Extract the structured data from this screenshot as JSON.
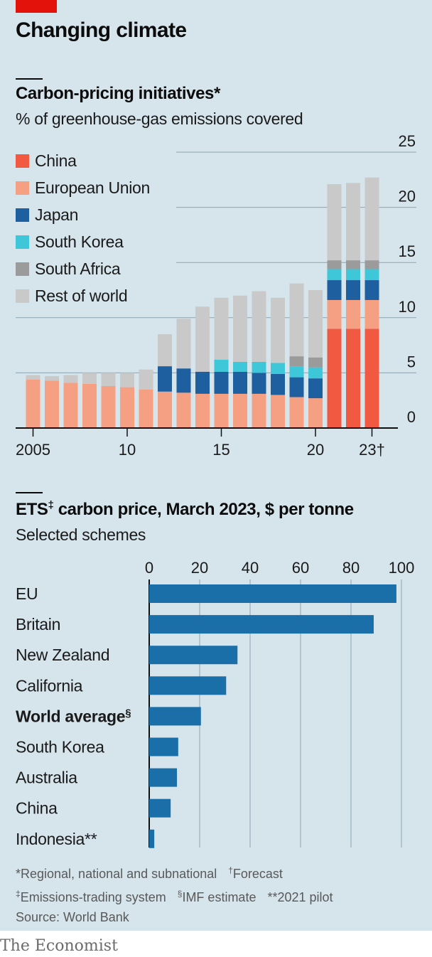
{
  "header": {
    "title": "Changing climate",
    "brand": "The Economist"
  },
  "chart_data": [
    {
      "type": "bar",
      "stacked": true,
      "title": "Carbon-pricing initiatives*",
      "subtitle": "% of greenhouse-gas emissions covered",
      "x": [
        2005,
        2006,
        2007,
        2008,
        2009,
        2010,
        2011,
        2012,
        2013,
        2014,
        2015,
        2016,
        2017,
        2018,
        2019,
        2020,
        2021,
        2022,
        2023
      ],
      "x_tick_labels": [
        {
          "x": 2005,
          "label": "2005"
        },
        {
          "x": 2010,
          "label": "10"
        },
        {
          "x": 2015,
          "label": "15"
        },
        {
          "x": 2020,
          "label": "20"
        },
        {
          "x": 2023,
          "label": "23†"
        }
      ],
      "ylim": [
        0,
        25
      ],
      "y_ticks": [
        "0",
        "5",
        "10",
        "15",
        "20",
        "25"
      ],
      "y_axis_side": "right",
      "grid": true,
      "legend_position": "top-left",
      "series": [
        {
          "name": "China",
          "color": "#f15a40",
          "values": [
            0,
            0,
            0,
            0,
            0,
            0,
            0,
            0,
            0,
            0,
            0,
            0,
            0,
            0,
            0,
            0,
            9,
            9,
            9
          ]
        },
        {
          "name": "European Union",
          "color": "#f5a083",
          "values": [
            4.4,
            4.3,
            4.1,
            4.0,
            3.8,
            3.7,
            3.5,
            3.3,
            3.2,
            3.1,
            3.1,
            3.1,
            3.1,
            3.0,
            2.8,
            2.7,
            2.6,
            2.6,
            2.6
          ]
        },
        {
          "name": "Japan",
          "color": "#1e5fa0",
          "values": [
            0,
            0,
            0,
            0,
            0,
            0,
            0,
            2.3,
            2.2,
            2.0,
            2.0,
            2.0,
            1.9,
            1.9,
            1.8,
            1.8,
            1.8,
            1.8,
            1.8
          ]
        },
        {
          "name": "South Korea",
          "color": "#3ec6d9",
          "values": [
            0,
            0,
            0,
            0,
            0,
            0,
            0,
            0,
            0,
            0,
            1.1,
            0.9,
            1.0,
            1.0,
            1.0,
            1.0,
            1.0,
            1.0,
            1.0
          ]
        },
        {
          "name": "South Africa",
          "color": "#9b9b9b",
          "values": [
            0,
            0,
            0,
            0,
            0,
            0,
            0,
            0,
            0,
            0,
            0,
            0,
            0,
            0,
            0.9,
            0.9,
            0.8,
            0.8,
            0.8
          ]
        },
        {
          "name": "Rest of world",
          "color": "#c9c9c9",
          "values": [
            0.4,
            0.4,
            0.7,
            1.0,
            1.2,
            1.3,
            1.8,
            2.9,
            4.5,
            5.9,
            5.6,
            6.0,
            6.4,
            5.9,
            6.6,
            6.1,
            6.9,
            7.0,
            7.5
          ]
        }
      ]
    },
    {
      "type": "bar",
      "orientation": "horizontal",
      "title_main": "ETS",
      "title_mark": "‡",
      "title_rest": " carbon price, March 2023, $ per tonne",
      "subtitle": "Selected schemes",
      "xlim": [
        0,
        100
      ],
      "x_ticks": [
        "0",
        "20",
        "40",
        "60",
        "80",
        "100"
      ],
      "bar_color": "#1a6fa8",
      "grid": true,
      "categories": [
        {
          "label": "EU",
          "mark": "",
          "value": 98,
          "bold": false
        },
        {
          "label": "Britain",
          "mark": "",
          "value": 89,
          "bold": false
        },
        {
          "label": "New Zealand",
          "mark": "",
          "value": 35,
          "bold": false
        },
        {
          "label": "California",
          "mark": "",
          "value": 30.5,
          "bold": false
        },
        {
          "label": "World average",
          "mark": "§",
          "value": 20.5,
          "bold": true
        },
        {
          "label": "South Korea",
          "mark": "",
          "value": 11.5,
          "bold": false
        },
        {
          "label": "Australia",
          "mark": "",
          "value": 11,
          "bold": false
        },
        {
          "label": "China",
          "mark": "",
          "value": 8.5,
          "bold": false
        },
        {
          "label": "Indonesia**",
          "mark": "",
          "value": 2,
          "bold": false
        }
      ]
    }
  ],
  "footnotes": {
    "f1": "*Regional, national and subnational",
    "f2_mark": "†",
    "f2": "Forecast",
    "f3_mark": "‡",
    "f3": "Emissions-trading system",
    "f4_mark": "§",
    "f4": "IMF estimate",
    "f5": "**2021 pilot",
    "source": "Source: World Bank"
  }
}
